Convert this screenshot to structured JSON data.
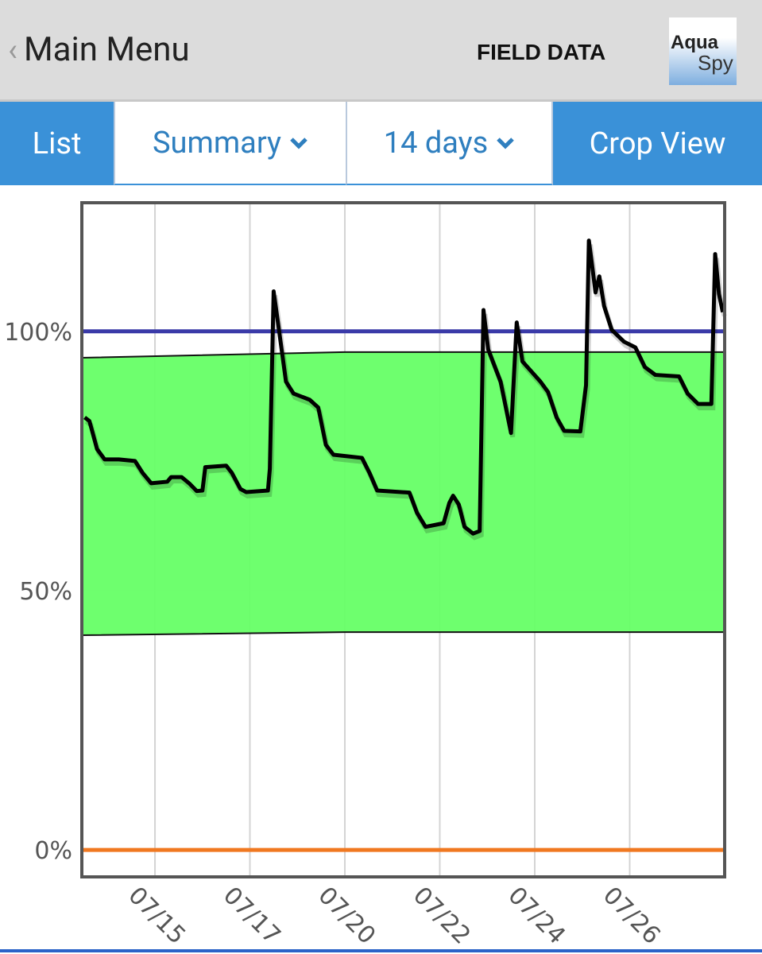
{
  "header": {
    "back": "Main Menu",
    "title": "FIELD DATA",
    "logo": [
      "Aqua",
      "Spy"
    ]
  },
  "tabs": [
    "List",
    "Summary",
    "14 days",
    "Crop View"
  ],
  "chart_data": {
    "type": "line",
    "xlim": [
      -0.77,
      6.0
    ],
    "xticks": [
      {
        "value": 0,
        "label": "07/15"
      },
      {
        "value": 1,
        "label": "07/17"
      },
      {
        "value": 2,
        "label": "07/20"
      },
      {
        "value": 3,
        "label": "07/22"
      },
      {
        "value": 4,
        "label": "07/24"
      },
      {
        "value": 5,
        "label": "07/26"
      }
    ],
    "ylim": [
      -5.2,
      124.8
    ],
    "yticks": [
      {
        "value": 0,
        "label": "0%"
      },
      {
        "value": 50,
        "label": "50%"
      },
      {
        "value": 100,
        "label": "100%"
      }
    ],
    "grid": true,
    "band": {
      "color": "#66ff66",
      "x": [
        -0.77,
        2.0,
        6.0
      ],
      "upper": [
        94.9,
        96.0,
        96.0
      ],
      "lower": [
        41.4,
        42.0,
        42.0
      ]
    },
    "reference_lines": [
      {
        "value": 100,
        "color": "#3a3aa8"
      },
      {
        "value": 0,
        "color": "#f07820"
      }
    ],
    "series": [
      {
        "color": "#000000",
        "x": [
          -0.74,
          -0.69,
          -0.61,
          -0.53,
          -0.38,
          -0.21,
          -0.13,
          -0.04,
          0.13,
          0.17,
          0.28,
          0.36,
          0.44,
          0.5,
          0.53,
          0.75,
          0.81,
          0.9,
          0.96,
          1.19,
          1.21,
          1.25,
          1.3,
          1.38,
          1.46,
          1.63,
          1.72,
          1.8,
          1.88,
          2.18,
          2.26,
          2.34,
          2.68,
          2.76,
          2.85,
          3.04,
          3.1,
          3.14,
          3.2,
          3.26,
          3.35,
          3.42,
          3.46,
          3.51,
          3.64,
          3.75,
          3.81,
          3.87,
          4.06,
          4.14,
          4.23,
          4.31,
          4.48,
          4.54,
          4.57,
          4.6,
          4.64,
          4.68,
          4.73,
          4.81,
          4.94,
          5.06,
          5.16,
          5.27,
          5.52,
          5.61,
          5.72,
          5.86,
          5.9,
          5.94,
          5.98
        ],
        "values": [
          83.4,
          82.7,
          77.3,
          75.3,
          75.3,
          75.0,
          72.7,
          70.7,
          71.0,
          71.9,
          71.9,
          70.7,
          69.2,
          69.3,
          73.8,
          74.1,
          72.7,
          69.6,
          69.0,
          69.3,
          73.5,
          107.7,
          101.1,
          90.3,
          88.0,
          86.8,
          85.3,
          78.1,
          76.2,
          75.6,
          72.7,
          69.3,
          68.9,
          65.0,
          62.3,
          63.0,
          66.9,
          68.3,
          66.6,
          62.3,
          61.0,
          61.5,
          104.1,
          96.5,
          90.3,
          80.4,
          101.7,
          94.2,
          90.3,
          88.3,
          83.4,
          80.8,
          80.7,
          89.6,
          117.5,
          113.3,
          107.5,
          110.6,
          104.9,
          100.3,
          98.0,
          96.9,
          93.1,
          91.6,
          91.3,
          88.0,
          86.0,
          86.0,
          114.9,
          107.2,
          103.7
        ]
      }
    ]
  }
}
